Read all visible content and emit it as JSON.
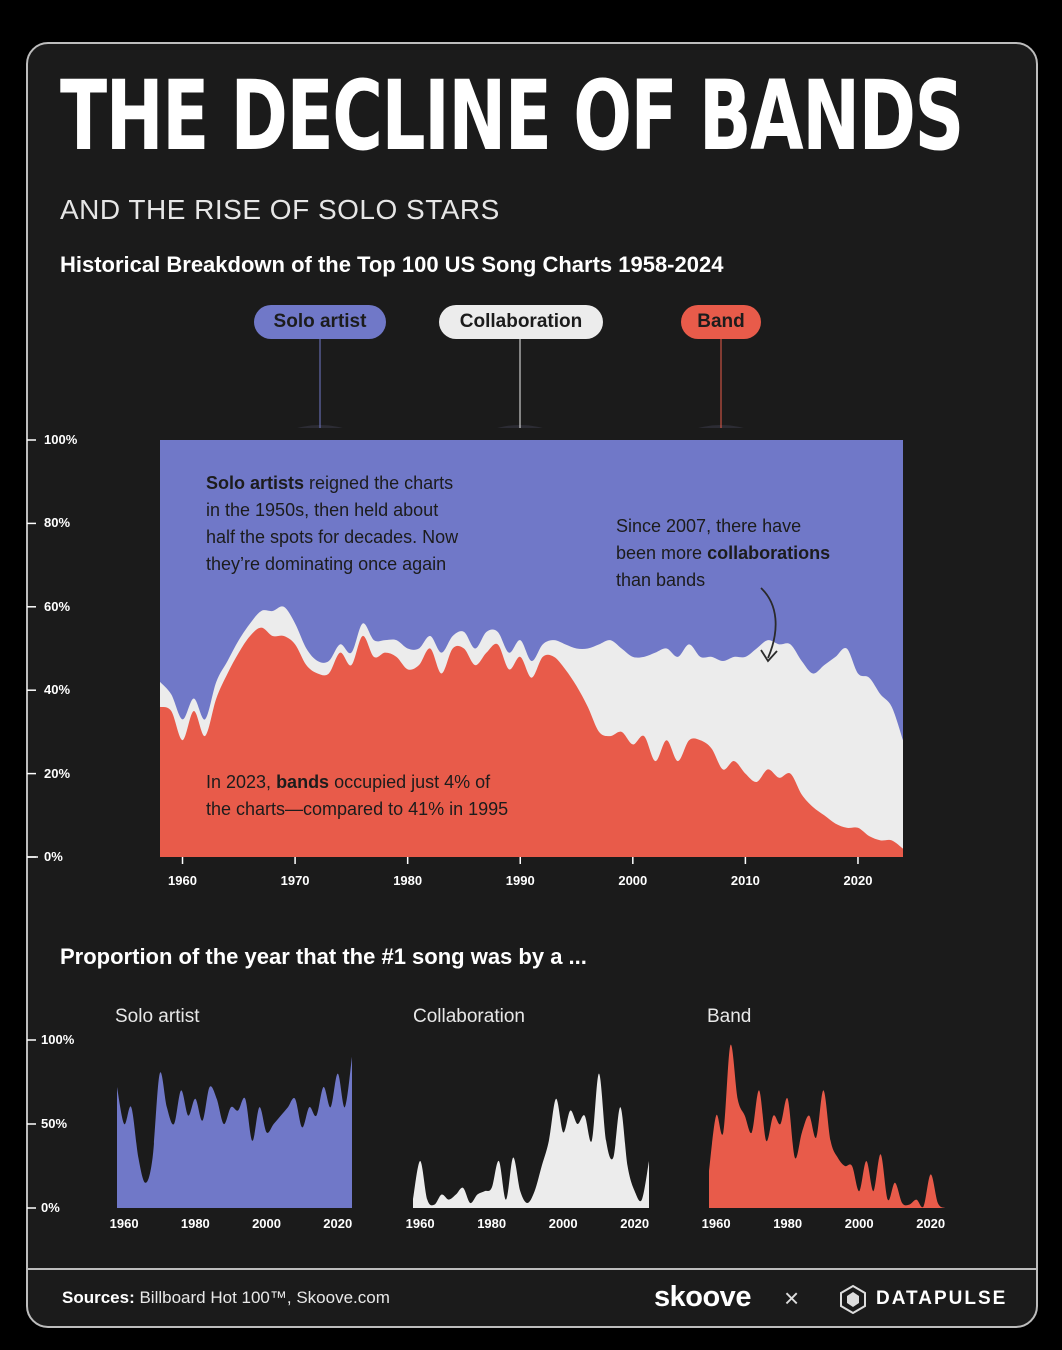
{
  "header": {
    "title": "THE DECLINE OF BANDS",
    "subtitle": "AND THE RISE OF SOLO STARS",
    "chart_title": "Historical Breakdown of the Top 100 US Song Charts 1958-2024",
    "bottom_title": "Proportion of the year that the #1 song was by a ..."
  },
  "legend": [
    {
      "label": "Solo artist",
      "color": "#7078c8",
      "text_color": "#1c1c1c"
    },
    {
      "label": "Collaboration",
      "color": "#ececec",
      "text_color": "#1c1c1c"
    },
    {
      "label": "Band",
      "color": "#e85b4a",
      "text_color": "#1c1c1c"
    }
  ],
  "annotations": {
    "solo": {
      "bold": "Solo artists",
      "rest1": " reigned the charts",
      "line2": "in the 1950s, then held about",
      "line3": "half the spots for decades. Now",
      "line4": "they’re dominating once again"
    },
    "collab": {
      "line1": "Since 2007, there have",
      "pre2": "been more ",
      "bold": "collaborations",
      "line3": "than bands"
    },
    "band": {
      "pre1": "In 2023, ",
      "bold": "bands",
      "rest1": " occupied just 4% of",
      "line2": "the charts—compared to 41% in 1995"
    }
  },
  "footer": {
    "sources_label": "Sources:",
    "sources_text": " Billboard Hot 100™, Skoove.com",
    "brand1": "skoove",
    "cross": "×",
    "brand2": "DATAPULSE"
  },
  "chart_data": [
    {
      "type": "area",
      "stacked": true,
      "xlim": [
        1958,
        2024
      ],
      "ylim": [
        0,
        100
      ],
      "yticks": [
        "0%",
        "20%",
        "40%",
        "60%",
        "80%",
        "100%"
      ],
      "xticks": [
        1960,
        1970,
        1980,
        1990,
        2000,
        2010,
        2020
      ],
      "x": [
        1958,
        1959,
        1960,
        1961,
        1962,
        1963,
        1964,
        1965,
        1966,
        1967,
        1968,
        1969,
        1970,
        1971,
        1972,
        1973,
        1974,
        1975,
        1976,
        1977,
        1978,
        1979,
        1980,
        1981,
        1982,
        1983,
        1984,
        1985,
        1986,
        1987,
        1988,
        1989,
        1990,
        1991,
        1992,
        1993,
        1994,
        1995,
        1996,
        1997,
        1998,
        1999,
        2000,
        2001,
        2002,
        2003,
        2004,
        2005,
        2006,
        2007,
        2008,
        2009,
        2010,
        2011,
        2012,
        2013,
        2014,
        2015,
        2016,
        2017,
        2018,
        2019,
        2020,
        2021,
        2022,
        2023,
        2024
      ],
      "series": [
        {
          "name": "Band",
          "values": [
            36,
            35,
            28,
            35,
            29,
            38,
            44,
            49,
            53,
            55,
            53,
            53,
            51,
            46,
            44,
            44,
            49,
            46,
            53,
            48,
            49,
            48,
            45,
            46,
            50,
            44,
            50,
            50,
            46,
            49,
            51,
            45,
            48,
            43,
            48,
            48,
            45,
            41,
            36,
            30,
            29,
            30,
            27,
            29,
            23,
            28,
            23,
            28,
            28,
            26,
            21,
            23,
            20,
            18,
            21,
            19,
            20,
            15,
            12,
            10,
            8,
            7,
            7,
            5,
            4,
            4,
            2
          ]
        },
        {
          "name": "Collaboration",
          "values": [
            6,
            4,
            5,
            3,
            4,
            4,
            3,
            3,
            3,
            4,
            6,
            7,
            5,
            4,
            3,
            3,
            2,
            3,
            3,
            4,
            3,
            4,
            5,
            4,
            3,
            5,
            3,
            4,
            4,
            5,
            3,
            4,
            4,
            4,
            3,
            4,
            6,
            9,
            14,
            21,
            23,
            20,
            21,
            19,
            26,
            22,
            25,
            23,
            20,
            22,
            26,
            25,
            28,
            32,
            31,
            32,
            31,
            32,
            32,
            36,
            40,
            43,
            37,
            38,
            35,
            32,
            26
          ]
        },
        {
          "name": "Solo artist",
          "values": [
            58,
            61,
            67,
            62,
            67,
            58,
            53,
            48,
            44,
            41,
            41,
            40,
            44,
            50,
            53,
            53,
            49,
            51,
            44,
            48,
            48,
            48,
            50,
            50,
            47,
            51,
            47,
            46,
            50,
            46,
            46,
            51,
            48,
            53,
            49,
            48,
            49,
            50,
            50,
            49,
            48,
            50,
            52,
            52,
            51,
            50,
            52,
            49,
            52,
            52,
            53,
            52,
            52,
            50,
            48,
            49,
            49,
            53,
            56,
            54,
            52,
            50,
            56,
            57,
            61,
            64,
            72
          ]
        }
      ]
    },
    {
      "type": "area",
      "title": "Solo artist",
      "xlim": [
        1958,
        2024
      ],
      "ylim": [
        0,
        100
      ],
      "yticks": [
        "0%",
        "50%",
        "100%"
      ],
      "xticks": [
        1960,
        1980,
        2000,
        2020
      ],
      "x": [
        1958,
        1960,
        1962,
        1964,
        1966,
        1968,
        1970,
        1972,
        1974,
        1976,
        1978,
        1980,
        1982,
        1984,
        1986,
        1988,
        1990,
        1992,
        1994,
        1996,
        1998,
        2000,
        2002,
        2004,
        2006,
        2008,
        2010,
        2012,
        2014,
        2016,
        2018,
        2020,
        2022,
        2024
      ],
      "values": [
        72,
        50,
        60,
        30,
        15,
        30,
        80,
        60,
        50,
        70,
        55,
        65,
        52,
        72,
        65,
        50,
        60,
        58,
        65,
        40,
        60,
        45,
        50,
        55,
        60,
        65,
        48,
        60,
        55,
        72,
        60,
        80,
        60,
        90
      ]
    },
    {
      "type": "area",
      "title": "Collaboration",
      "xlim": [
        1958,
        2024
      ],
      "ylim": [
        0,
        100
      ],
      "xticks": [
        1960,
        1980,
        2000,
        2020
      ],
      "x": [
        1958,
        1960,
        1962,
        1964,
        1966,
        1968,
        1970,
        1972,
        1974,
        1976,
        1978,
        1980,
        1982,
        1984,
        1986,
        1988,
        1990,
        1992,
        1994,
        1996,
        1998,
        2000,
        2002,
        2004,
        2006,
        2008,
        2010,
        2012,
        2014,
        2016,
        2018,
        2020,
        2022,
        2024
      ],
      "values": [
        5,
        28,
        5,
        2,
        8,
        5,
        8,
        12,
        3,
        8,
        10,
        12,
        28,
        5,
        30,
        10,
        3,
        10,
        25,
        40,
        65,
        45,
        58,
        50,
        55,
        40,
        80,
        40,
        30,
        60,
        25,
        10,
        5,
        28
      ]
    },
    {
      "type": "area",
      "title": "Band",
      "xlim": [
        1958,
        2024
      ],
      "ylim": [
        0,
        100
      ],
      "xticks": [
        1960,
        1980,
        2000,
        2020
      ],
      "x": [
        1958,
        1960,
        1962,
        1964,
        1966,
        1968,
        1970,
        1972,
        1974,
        1976,
        1978,
        1980,
        1982,
        1984,
        1986,
        1988,
        1990,
        1992,
        1994,
        1996,
        1998,
        2000,
        2002,
        2004,
        2006,
        2008,
        2010,
        2012,
        2014,
        2016,
        2018,
        2020,
        2022,
        2024
      ],
      "values": [
        22,
        55,
        45,
        97,
        65,
        55,
        45,
        70,
        40,
        55,
        50,
        65,
        30,
        45,
        55,
        42,
        70,
        40,
        30,
        25,
        25,
        10,
        28,
        10,
        32,
        5,
        15,
        3,
        2,
        5,
        1,
        20,
        3,
        0
      ]
    }
  ]
}
